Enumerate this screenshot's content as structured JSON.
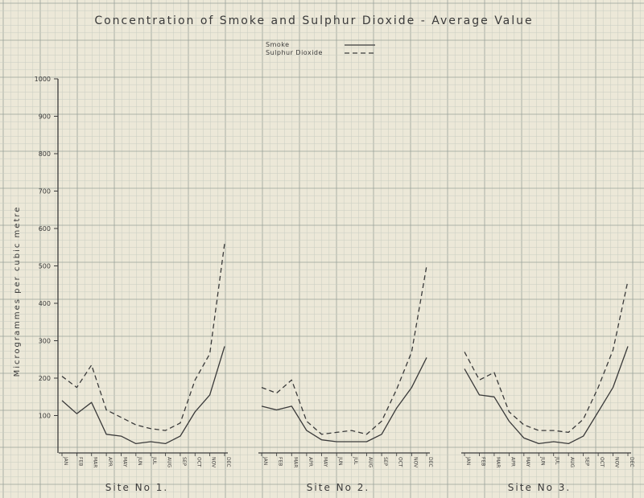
{
  "chart_data": {
    "type": "line",
    "title": "Concentration of Smoke and Sulphur Dioxide - Average Value",
    "ylabel": "Microgrammes per cubic metre",
    "ylim": [
      0,
      1000
    ],
    "yticks": [
      100,
      200,
      300,
      400,
      500,
      600,
      700,
      800,
      900,
      1000
    ],
    "grid": true,
    "legend_position": "top-center",
    "legend": [
      {
        "label": "Smoke",
        "style": "solid"
      },
      {
        "label": "Sulphur Dioxide",
        "style": "dashed"
      }
    ],
    "months": [
      "Jan",
      "Feb",
      "Mar",
      "Apr",
      "May",
      "Jun",
      "Jul",
      "Aug",
      "Sep",
      "Oct",
      "Nov",
      "Dec"
    ],
    "panels": [
      {
        "label": "Site No 1.",
        "series": [
          {
            "name": "Smoke",
            "values": [
              140,
              105,
              135,
              50,
              45,
              25,
              30,
              25,
              45,
              110,
              155,
              285
            ]
          },
          {
            "name": "Sulphur Dioxide",
            "values": [
              205,
              175,
              235,
              115,
              95,
              75,
              65,
              60,
              80,
              195,
              265,
              560
            ]
          }
        ]
      },
      {
        "label": "Site No 2.",
        "series": [
          {
            "name": "Smoke",
            "values": [
              125,
              115,
              125,
              60,
              35,
              30,
              30,
              30,
              50,
              120,
              175,
              255
            ]
          },
          {
            "name": "Sulphur Dioxide",
            "values": [
              175,
              160,
              195,
              85,
              50,
              55,
              60,
              50,
              85,
              170,
              270,
              500
            ]
          }
        ]
      },
      {
        "label": "Site No 3.",
        "series": [
          {
            "name": "Smoke",
            "values": [
              225,
              155,
              150,
              85,
              40,
              25,
              30,
              25,
              45,
              110,
              175,
              285
            ]
          },
          {
            "name": "Sulphur Dioxide",
            "values": [
              270,
              195,
              215,
              110,
              75,
              60,
              60,
              55,
              90,
              175,
              275,
              460
            ]
          }
        ]
      }
    ]
  },
  "colors": {
    "paper": "#ece8d8",
    "grid_minor": "#c9cdc2",
    "grid_major": "#9aa29a",
    "ink": "#3a3a3a"
  }
}
